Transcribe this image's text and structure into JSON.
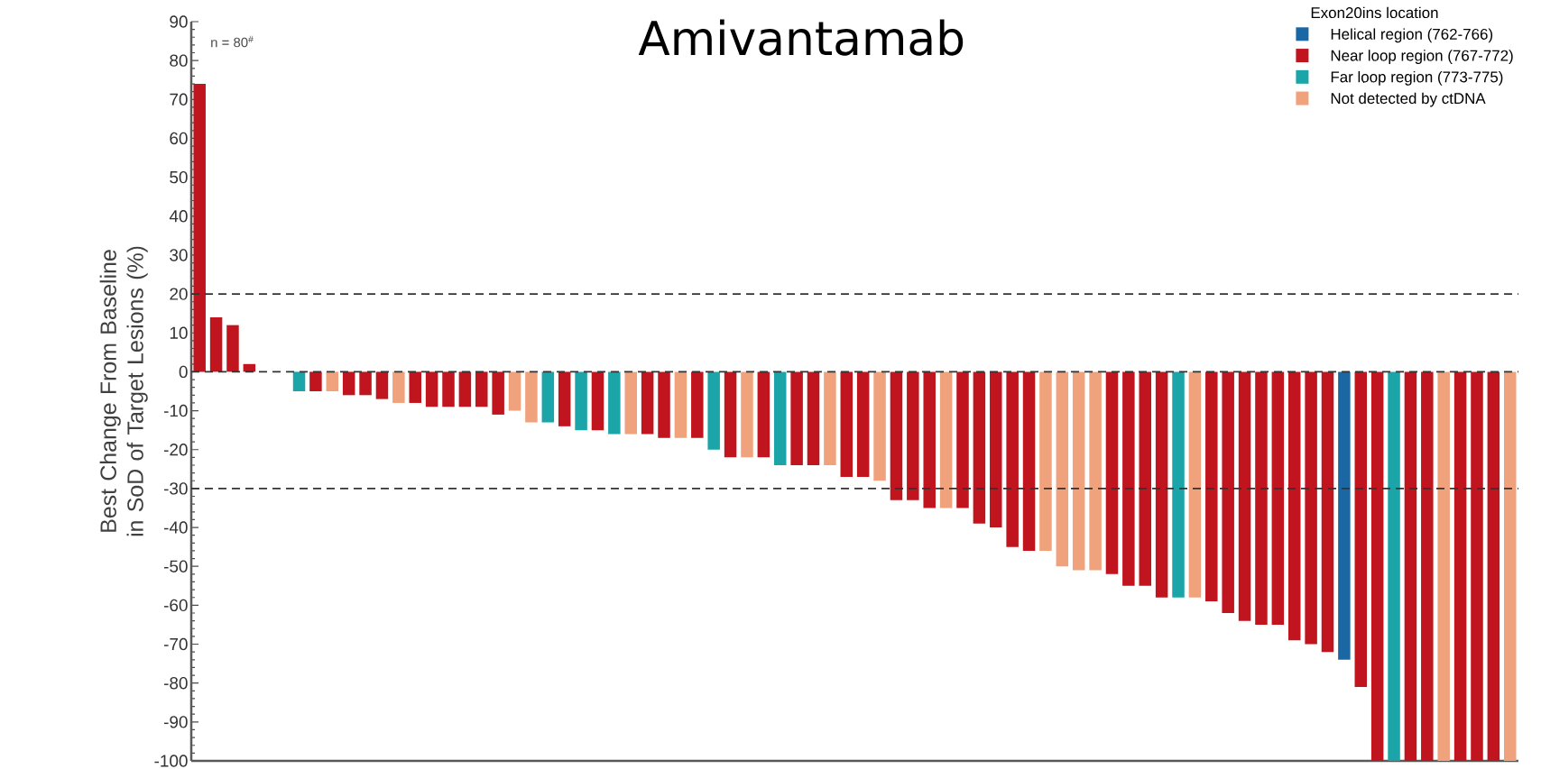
{
  "chart_data": {
    "type": "bar",
    "title": "Amivantamab",
    "ylabel": "Best Change From Baseline in SoD of Target Lesions (%)",
    "legend_title": "Exon20ins location",
    "legend": "top right",
    "annotations": [
      "n = 80$^{#}$"
    ],
    "categories": [
      null,
      null,
      null,
      null,
      null,
      null,
      null,
      null,
      null,
      null,
      null,
      null,
      null,
      null,
      null,
      null,
      null,
      null,
      null,
      null,
      null,
      null,
      null,
      null,
      null,
      null,
      null,
      null,
      null,
      null,
      null,
      null,
      null,
      null,
      null,
      null,
      null,
      null,
      null,
      null,
      null,
      null,
      null,
      null,
      null,
      null,
      null,
      null,
      null,
      null,
      null,
      null,
      null,
      null,
      null,
      null,
      null,
      null,
      null,
      null,
      null,
      null,
      null,
      null,
      null,
      null,
      null,
      null,
      null,
      null,
      null,
      null,
      null,
      null,
      null,
      null,
      null,
      null,
      null,
      null
    ],
    "series": [
      {
        "name": "Helical region (762-766)",
        "color": "#1b67a3",
        "values": [
          null,
          null,
          null,
          null,
          null,
          null,
          null,
          null,
          null,
          null,
          null,
          null,
          null,
          null,
          null,
          null,
          null,
          null,
          null,
          null,
          null,
          null,
          null,
          null,
          null,
          null,
          null,
          null,
          null,
          null,
          null,
          null,
          null,
          null,
          null,
          null,
          null,
          null,
          null,
          null,
          null,
          null,
          null,
          null,
          null,
          null,
          null,
          null,
          null,
          null,
          null,
          null,
          null,
          null,
          null,
          null,
          null,
          null,
          null,
          null,
          null,
          null,
          null,
          null,
          null,
          null,
          null,
          null,
          null,
          -74,
          null,
          null,
          null,
          null,
          null,
          null,
          null,
          null,
          null,
          null
        ]
      },
      {
        "name": "Near loop region (767-772)",
        "color": "#c0141e",
        "values": [
          74,
          14,
          12,
          2,
          null,
          null,
          null,
          -5,
          null,
          -6,
          -6,
          -7,
          null,
          -8,
          -9,
          -9,
          -9,
          -9,
          -11,
          null,
          null,
          null,
          -14,
          null,
          -15,
          null,
          null,
          -16,
          -17,
          null,
          -17,
          null,
          -22,
          null,
          -22,
          null,
          -24,
          -24,
          null,
          -27,
          -27,
          null,
          -33,
          -33,
          -35,
          null,
          -35,
          -39,
          -40,
          -45,
          -46,
          null,
          null,
          null,
          null,
          -52,
          -55,
          -55,
          -58,
          null,
          null,
          -59,
          -62,
          -64,
          -65,
          -65,
          -69,
          -70,
          -72,
          null,
          -81,
          -100,
          null,
          -100,
          -100,
          null,
          -100,
          -100,
          -100,
          null
        ]
      },
      {
        "name": "Far loop region (773-775)",
        "color": "#1ba5a8",
        "values": [
          null,
          null,
          null,
          null,
          null,
          null,
          -5,
          null,
          null,
          null,
          null,
          null,
          null,
          null,
          null,
          null,
          null,
          null,
          null,
          null,
          null,
          -13,
          null,
          -15,
          null,
          -16,
          null,
          null,
          null,
          null,
          null,
          -20,
          null,
          null,
          null,
          -24,
          null,
          null,
          null,
          null,
          null,
          null,
          null,
          null,
          null,
          null,
          null,
          null,
          null,
          null,
          null,
          null,
          null,
          null,
          null,
          null,
          null,
          null,
          null,
          -58,
          null,
          null,
          null,
          null,
          null,
          null,
          null,
          null,
          null,
          null,
          null,
          null,
          -100,
          null,
          null,
          null,
          null,
          null,
          null,
          null
        ]
      },
      {
        "name": "Not detected by ctDNA",
        "color": "#f0a27c",
        "values": [
          null,
          null,
          null,
          null,
          null,
          null,
          null,
          null,
          -5,
          null,
          null,
          null,
          -8,
          null,
          null,
          null,
          null,
          null,
          null,
          -10,
          -13,
          null,
          null,
          null,
          null,
          null,
          -16,
          null,
          null,
          -17,
          null,
          null,
          null,
          -22,
          null,
          null,
          null,
          null,
          -24,
          null,
          null,
          -28,
          null,
          null,
          null,
          -35,
          null,
          null,
          null,
          null,
          null,
          -46,
          -50,
          -51,
          -51,
          null,
          null,
          null,
          null,
          null,
          -58,
          null,
          null,
          null,
          null,
          null,
          null,
          null,
          null,
          null,
          null,
          null,
          null,
          null,
          null,
          -100,
          null,
          null,
          null,
          -100
        ]
      }
    ],
    "ylim": [
      -100,
      90
    ],
    "yticks": [
      -100,
      -90,
      -80,
      -70,
      -60,
      -50,
      -40,
      -30,
      -20,
      -10,
      0,
      10,
      20,
      30,
      40,
      50,
      60,
      70,
      80,
      90
    ],
    "ref_lines": [
      {
        "axis": "y",
        "value": 20,
        "color": "#333333",
        "line_style": "dashed"
      },
      {
        "axis": "y",
        "value": 0,
        "color": "#333333",
        "line_style": "dashed"
      },
      {
        "axis": "y",
        "value": -30,
        "color": "#333333",
        "line_style": "dashed"
      }
    ]
  }
}
